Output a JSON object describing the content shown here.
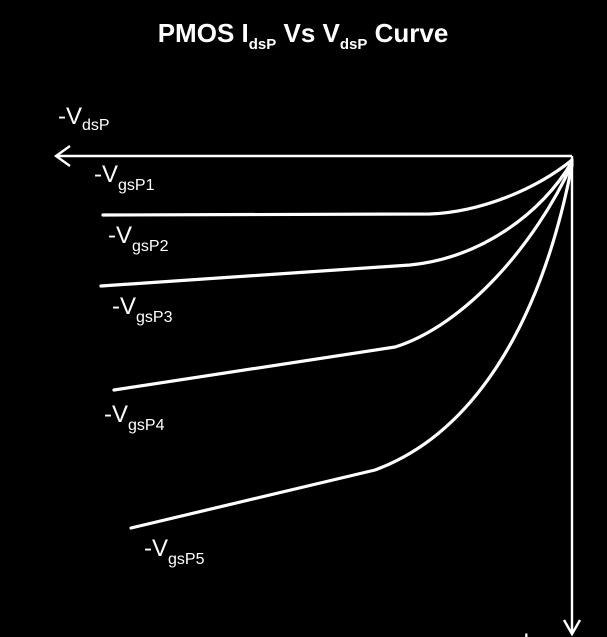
{
  "title": {
    "main1": "PMOS I",
    "sub1": "dsP",
    "main2": " Vs V",
    "sub2": "dsP",
    "main3": " Curve"
  },
  "axes": {
    "x_label_main": "-V",
    "x_label_sub": "dsP",
    "y_label_main": "I"
  },
  "curves": [
    {
      "label_main": "-V",
      "label_sub": "gsP1"
    },
    {
      "label_main": "-V",
      "label_sub": "gsP2"
    },
    {
      "label_main": "-V",
      "label_sub": "gsP3"
    },
    {
      "label_main": "-V",
      "label_sub": "gsP4"
    },
    {
      "label_main": "-V",
      "label_sub": "gsP5"
    }
  ],
  "colors": {
    "background": "#000000",
    "foreground": "#ffffff"
  }
}
